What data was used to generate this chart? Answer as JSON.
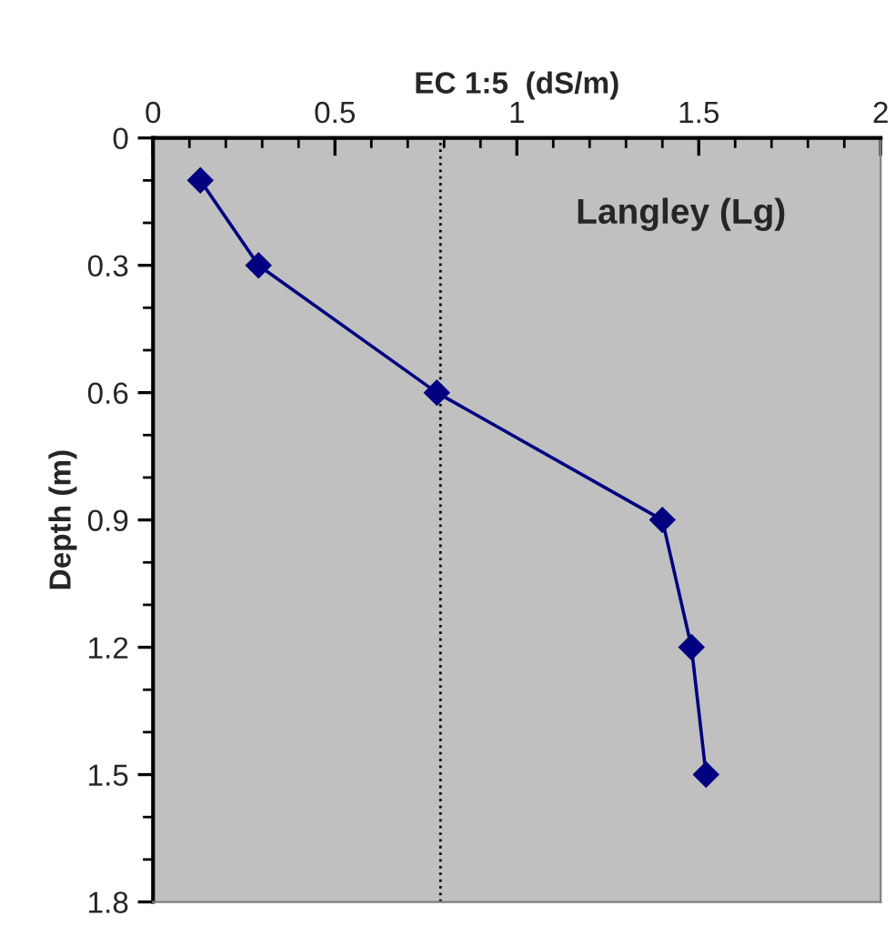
{
  "chart_data": {
    "type": "line",
    "xlabel": "EC 1:5  (dS/m)",
    "ylabel": "Depth (m)",
    "annotations": [
      "Langley (Lg)"
    ],
    "series": [
      {
        "color": "#000080",
        "x": [
          0.13,
          0.29,
          0.78,
          1.4,
          1.48,
          1.52
        ],
        "values": [
          0.1,
          0.3,
          0.6,
          0.9,
          1.2,
          1.5
        ]
      }
    ],
    "marker": "diamond",
    "line_style": "solid",
    "grid": false,
    "legend": false,
    "xlim": [
      0,
      2
    ],
    "ylim": [
      1.8,
      0
    ],
    "xticks": [
      0,
      0.5,
      1,
      1.5,
      2,
      {
        "value": 0.1,
        "label": null
      },
      {
        "value": 0.2,
        "label": null
      },
      {
        "value": 0.3,
        "label": null
      },
      {
        "value": 0.4,
        "label": null
      },
      {
        "value": 0.6,
        "label": null
      },
      {
        "value": 0.7,
        "label": null
      },
      {
        "value": 0.8,
        "label": null
      },
      {
        "value": 0.9,
        "label": null
      },
      {
        "value": 1.1,
        "label": null
      },
      {
        "value": 1.2,
        "label": null
      },
      {
        "value": 1.3,
        "label": null
      },
      {
        "value": 1.4,
        "label": null
      },
      {
        "value": 1.6,
        "label": null
      },
      {
        "value": 1.7,
        "label": null
      },
      {
        "value": 1.8,
        "label": null
      },
      {
        "value": 1.9,
        "label": null
      }
    ],
    "yticks": [
      0,
      0.3,
      0.6,
      0.9,
      1.2,
      1.5,
      1.8,
      {
        "value": 0.1,
        "label": null
      },
      {
        "value": 0.2,
        "label": null
      },
      {
        "value": 0.4,
        "label": null
      },
      {
        "value": 0.5,
        "label": null
      },
      {
        "value": 0.7,
        "label": null
      },
      {
        "value": 0.8,
        "label": null
      },
      {
        "value": 1.0,
        "label": null
      },
      {
        "value": 1.1,
        "label": null
      },
      {
        "value": 1.3,
        "label": null
      },
      {
        "value": 1.4,
        "label": null
      },
      {
        "value": 1.6,
        "label": null
      },
      {
        "value": 1.7,
        "label": null
      }
    ],
    "ref_lines": [
      {
        "axis": "x",
        "value": 0.79,
        "color": "#000000",
        "line_style": "dotted"
      }
    ]
  }
}
